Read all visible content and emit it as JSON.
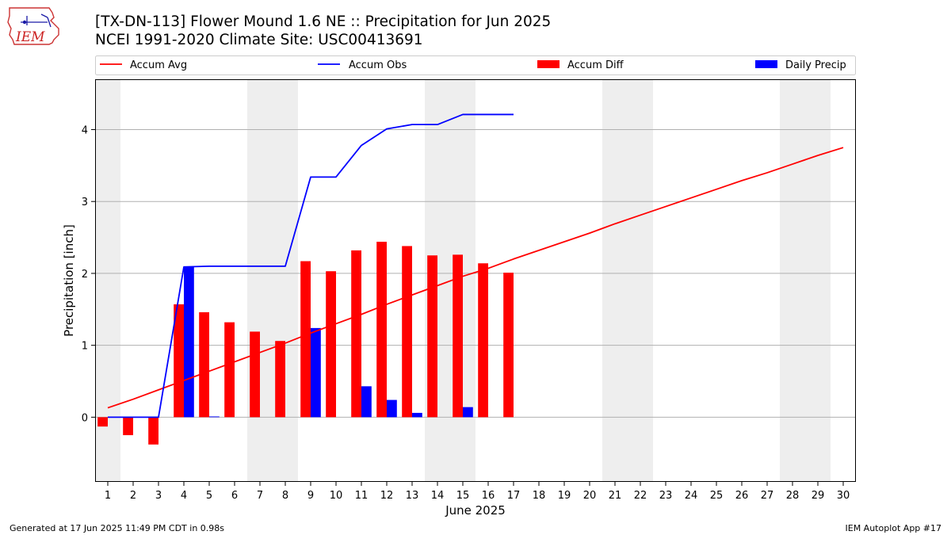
{
  "logo": {
    "text": "IEM"
  },
  "header": {
    "title_line1": "[TX-DN-113] Flower Mound 1.6 NE :: Precipitation for Jun 2025",
    "title_line2": "NCEI 1991-2020 Climate Site: USC00413691"
  },
  "footer": {
    "left": "Generated at 17 Jun 2025 11:49 PM CDT in 0.98s",
    "right": "IEM Autoplot App #17"
  },
  "chart_data": {
    "type": "bar",
    "xlabel": "June 2025",
    "ylabel": "Precipitation [inch]",
    "xlim": [
      0.5,
      30.5
    ],
    "ylim": [
      -0.9,
      4.7
    ],
    "yticks": [
      0,
      1,
      2,
      3,
      4
    ],
    "categories": [
      "1",
      "2",
      "3",
      "4",
      "5",
      "6",
      "7",
      "8",
      "9",
      "10",
      "11",
      "12",
      "13",
      "14",
      "15",
      "16",
      "17",
      "18",
      "19",
      "20",
      "21",
      "22",
      "23",
      "24",
      "25",
      "26",
      "27",
      "28",
      "29",
      "30"
    ],
    "grid": "horizontal",
    "legend_placement": "top",
    "weekend_shading": [
      [
        0.5,
        1.5
      ],
      [
        6.5,
        8.5
      ],
      [
        13.5,
        15.5
      ],
      [
        20.5,
        22.5
      ],
      [
        27.5,
        29.5
      ]
    ],
    "colors": {
      "accum_avg": "#ff0000",
      "accum_obs": "#0000ff",
      "accum_diff": "#ff0000",
      "daily_precip": "#0000ff",
      "weekend": "#eeeeee"
    },
    "series": [
      {
        "name": "Accum Avg",
        "kind": "line",
        "x": [
          1,
          2,
          3,
          4,
          5,
          6,
          7,
          8,
          9,
          10,
          11,
          12,
          13,
          14,
          15,
          16,
          17,
          18,
          19,
          20,
          21,
          22,
          23,
          24,
          25,
          26,
          27,
          28,
          29,
          30
        ],
        "values": [
          0.13,
          0.25,
          0.38,
          0.51,
          0.64,
          0.77,
          0.9,
          1.03,
          1.17,
          1.3,
          1.43,
          1.57,
          1.7,
          1.83,
          1.96,
          2.07,
          2.2,
          2.32,
          2.44,
          2.56,
          2.69,
          2.81,
          2.93,
          3.05,
          3.17,
          3.29,
          3.4,
          3.52,
          3.64,
          3.75
        ]
      },
      {
        "name": "Accum Obs",
        "kind": "line",
        "x": [
          1,
          2,
          3,
          4,
          5,
          6,
          7,
          8,
          9,
          10,
          11,
          12,
          13,
          14,
          15,
          16,
          17
        ],
        "values": [
          0.0,
          0.0,
          0.0,
          2.09,
          2.1,
          2.1,
          2.1,
          2.1,
          3.34,
          3.34,
          3.78,
          4.01,
          4.07,
          4.07,
          4.21,
          4.21,
          4.21
        ]
      },
      {
        "name": "Accum Diff",
        "kind": "bar",
        "x": [
          1,
          2,
          3,
          4,
          5,
          6,
          7,
          8,
          9,
          10,
          11,
          12,
          13,
          14,
          15,
          16,
          17
        ],
        "values": [
          -0.13,
          -0.25,
          -0.38,
          1.57,
          1.46,
          1.32,
          1.19,
          1.06,
          2.17,
          2.03,
          2.32,
          2.44,
          2.38,
          2.25,
          2.26,
          2.14,
          2.01
        ]
      },
      {
        "name": "Daily Precip",
        "kind": "bar",
        "x": [
          1,
          2,
          3,
          4,
          5,
          6,
          7,
          8,
          9,
          10,
          11,
          12,
          13,
          14,
          15,
          16,
          17
        ],
        "values": [
          0,
          0,
          0,
          2.09,
          0.01,
          0,
          0,
          0,
          1.24,
          0,
          0.43,
          0.24,
          0.06,
          0,
          0.14,
          0,
          0
        ]
      }
    ]
  }
}
